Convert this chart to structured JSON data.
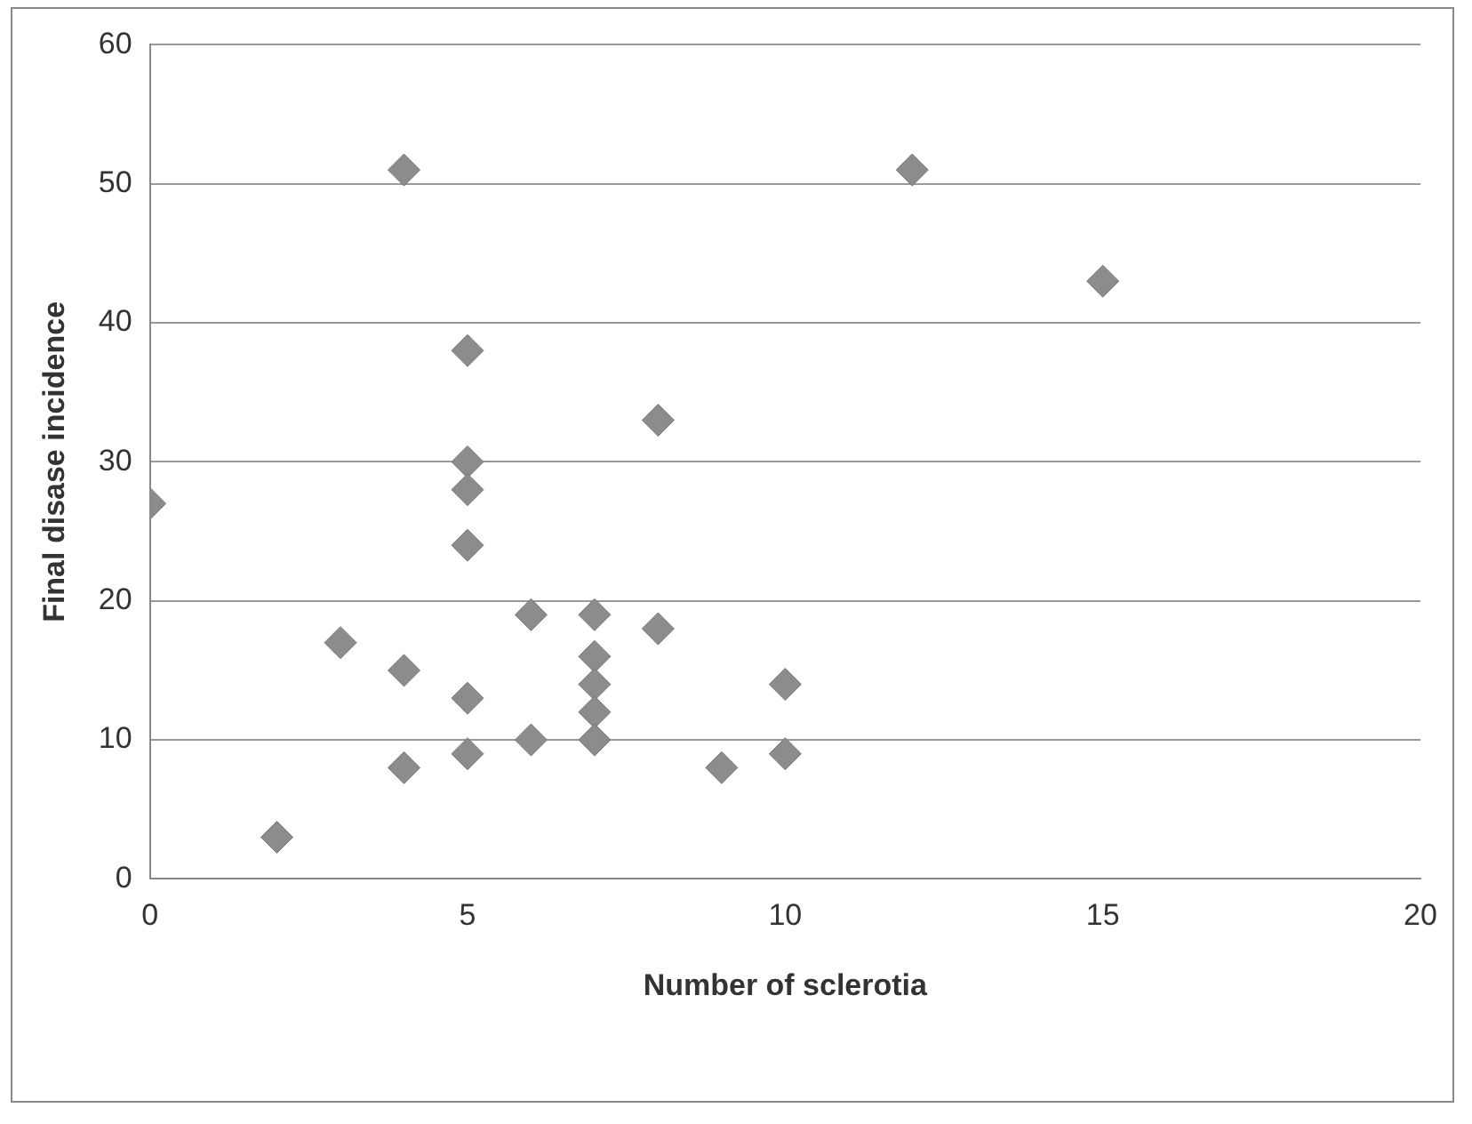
{
  "chart_data": {
    "type": "scatter",
    "xlabel": "Number of sclerotia",
    "ylabel": "Final disase incidence",
    "xlim": [
      0,
      20
    ],
    "xticks": [
      0,
      5,
      10,
      15,
      20
    ],
    "ylim": [
      0,
      60
    ],
    "yticks": [
      0,
      10,
      20,
      30,
      40,
      50,
      60
    ],
    "grid": "y",
    "marker": "diamond",
    "legend": false,
    "series": [
      {
        "color": "#8c8c8c",
        "x": [
          0,
          2,
          3,
          4,
          4,
          4,
          5,
          5,
          5,
          5,
          5,
          5,
          6,
          6,
          7,
          7,
          7,
          7,
          7,
          8,
          8,
          9,
          10,
          10,
          12,
          15
        ],
        "values": [
          27,
          3,
          17,
          51,
          15,
          8,
          38,
          30,
          28,
          24,
          13,
          9,
          19,
          10,
          19,
          16,
          14,
          12,
          10,
          33,
          18,
          8,
          14,
          9,
          51,
          43
        ]
      }
    ]
  }
}
